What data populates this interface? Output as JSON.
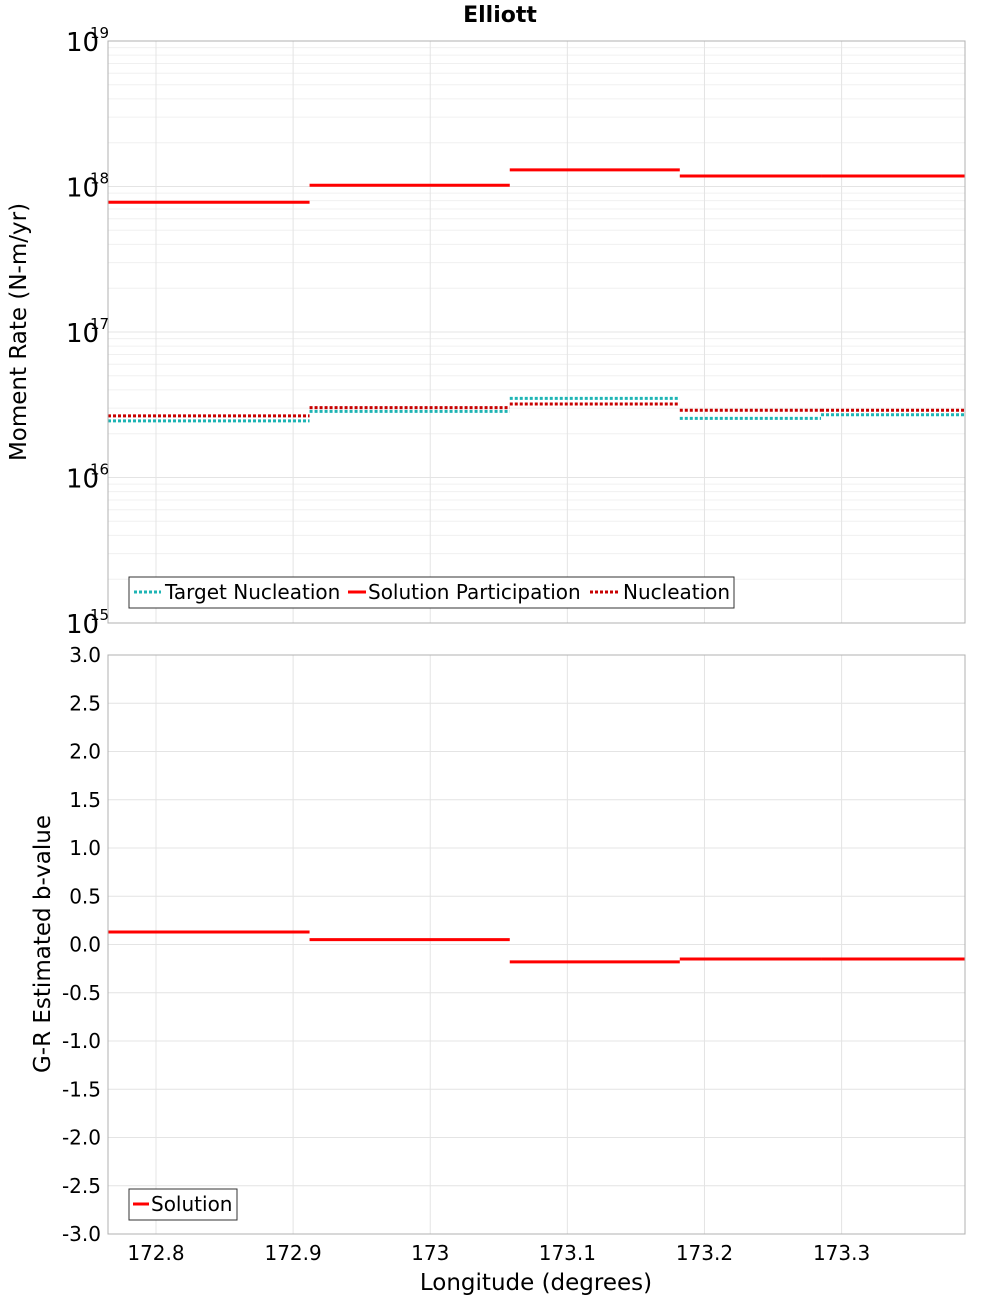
{
  "colors": {
    "target_nucleation": "#1eb4b4",
    "solution": "#ff0000",
    "nucleation": "#c80000",
    "grid_major": "#e4e4e4",
    "grid_minor": "#f0f0f0",
    "frame": "#b0b0b0"
  },
  "chart_data": [
    {
      "type": "line",
      "title": "Elliott",
      "ylabel": "Moment Rate (N-m/yr)",
      "yscale": "log",
      "ylim": [
        1000000000000000.0,
        1e+19
      ],
      "xlim": [
        172.765,
        173.39
      ],
      "y_ticks": [
        {
          "base": "10",
          "exp": "19",
          "value": 1e+19
        },
        {
          "base": "10",
          "exp": "18",
          "value": 1e+18
        },
        {
          "base": "10",
          "exp": "17",
          "value": 1e+17
        },
        {
          "base": "10",
          "exp": "16",
          "value": 1e+16
        },
        {
          "base": "10",
          "exp": "15",
          "value": 1000000000000000.0
        }
      ],
      "legend_position": "bottom-left",
      "series": [
        {
          "name": "Target Nucleation",
          "style": "dotted",
          "color_key": "target_nucleation",
          "steps": [
            [
              172.765,
              172.912,
              2.45e+16
            ],
            [
              172.912,
              173.058,
              2.85e+16
            ],
            [
              173.058,
              173.182,
              3.5e+16
            ],
            [
              173.182,
              173.285,
              2.55e+16
            ],
            [
              173.285,
              173.39,
              2.7e+16
            ]
          ]
        },
        {
          "name": "Solution Participation",
          "style": "solid",
          "color_key": "solution",
          "steps": [
            [
              172.765,
              172.912,
              7.8e+17
            ],
            [
              172.912,
              173.058,
              1.02e+18
            ],
            [
              173.058,
              173.182,
              1.3e+18
            ],
            [
              173.182,
              173.285,
              1.18e+18
            ],
            [
              173.285,
              173.39,
              1.18e+18
            ]
          ]
        },
        {
          "name": "Nucleation",
          "style": "dotted",
          "color_key": "nucleation",
          "steps": [
            [
              172.765,
              172.912,
              2.65e+16
            ],
            [
              172.912,
              173.058,
              3.02e+16
            ],
            [
              173.058,
              173.182,
              3.2e+16
            ],
            [
              173.182,
              173.285,
              2.9e+16
            ],
            [
              173.285,
              173.39,
              2.9e+16
            ]
          ]
        }
      ]
    },
    {
      "type": "line",
      "xlabel": "Longitude (degrees)",
      "ylabel": "G-R Estimated b-value",
      "ylim": [
        -3.0,
        3.0
      ],
      "xlim": [
        172.765,
        173.39
      ],
      "x_ticks": [
        {
          "label": "172.8",
          "value": 172.8
        },
        {
          "label": "172.9",
          "value": 172.9
        },
        {
          "label": "173",
          "value": 173.0
        },
        {
          "label": "173.1",
          "value": 173.1
        },
        {
          "label": "173.2",
          "value": 173.2
        },
        {
          "label": "173.3",
          "value": 173.3
        }
      ],
      "y_ticks": [
        {
          "label": "3.0",
          "value": 3.0
        },
        {
          "label": "2.5",
          "value": 2.5
        },
        {
          "label": "2.0",
          "value": 2.0
        },
        {
          "label": "1.5",
          "value": 1.5
        },
        {
          "label": "1.0",
          "value": 1.0
        },
        {
          "label": "0.5",
          "value": 0.5
        },
        {
          "label": "0.0",
          "value": 0.0
        },
        {
          "label": "-0.5",
          "value": -0.5
        },
        {
          "label": "-1.0",
          "value": -1.0
        },
        {
          "label": "-1.5",
          "value": -1.5
        },
        {
          "label": "-2.0",
          "value": -2.0
        },
        {
          "label": "-2.5",
          "value": -2.5
        },
        {
          "label": "-3.0",
          "value": -3.0
        }
      ],
      "legend_position": "bottom-left",
      "series": [
        {
          "name": "Solution",
          "style": "solid",
          "color_key": "solution",
          "steps": [
            [
              172.765,
              172.912,
              0.13
            ],
            [
              172.912,
              173.058,
              0.05
            ],
            [
              173.058,
              173.182,
              -0.18
            ],
            [
              173.182,
              173.285,
              -0.15
            ],
            [
              173.285,
              173.39,
              -0.15
            ]
          ]
        }
      ]
    }
  ]
}
